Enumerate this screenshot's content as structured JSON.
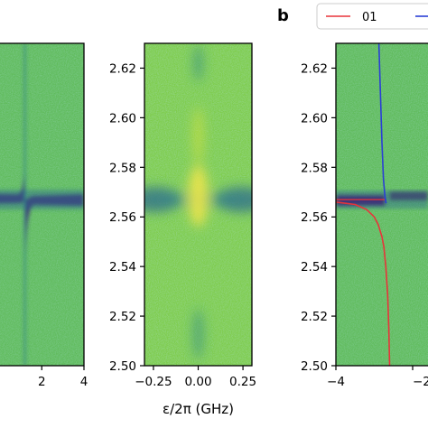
{
  "panel_letter": "b",
  "chart_data": [
    {
      "type": "heatmap",
      "panel": "left-cropped",
      "x_tick_labels": [
        "2",
        "4"
      ],
      "x_ticks": [
        2,
        4
      ],
      "xlim": [
        -4,
        4
      ],
      "ylim": [
        2.5,
        2.63
      ],
      "features": {
        "resonance_center_ghz": 2.567,
        "avoided_crossing_x": 1.2,
        "vertical_line_x": 1.2
      },
      "colormap": "viridis"
    },
    {
      "type": "heatmap",
      "panel": "middle",
      "xlabel": "ε/2π (GHz)",
      "x_ticks": [
        -0.25,
        0.0,
        0.25
      ],
      "x_tick_labels": [
        "−0.25",
        "0.00",
        "0.25"
      ],
      "xlim": [
        -0.3,
        0.3
      ],
      "y_ticks": [
        2.5,
        2.52,
        2.54,
        2.56,
        2.58,
        2.6,
        2.62
      ],
      "y_tick_labels": [
        "2.50",
        "2.52",
        "2.54",
        "2.56",
        "2.58",
        "2.60",
        "2.62"
      ],
      "ylim": [
        2.5,
        2.63
      ],
      "features": {
        "resonance_center_ghz": 2.567
      },
      "colormap": "viridis"
    },
    {
      "type": "line",
      "panel": "right",
      "overlay": "heatmap",
      "x_ticks": [
        -4,
        -2
      ],
      "x_tick_labels": [
        "−4",
        "−2"
      ],
      "xlim": [
        -4,
        -1.6
      ],
      "y_ticks": [
        2.5,
        2.52,
        2.54,
        2.56,
        2.58,
        2.6,
        2.62
      ],
      "y_tick_labels": [
        "2.50",
        "2.52",
        "2.54",
        "2.56",
        "2.58",
        "2.60",
        "2.62"
      ],
      "ylim": [
        2.5,
        2.63
      ],
      "legend": {
        "placement": "top",
        "entries": [
          "01"
        ]
      },
      "series": [
        {
          "name": "01",
          "color": "#e8343a",
          "x": [
            -4.0,
            -3.5,
            -3.2,
            -3.0,
            -2.9,
            -2.8,
            -2.75,
            -2.7,
            -2.65,
            -2.62,
            -2.6
          ],
          "y": [
            2.566,
            2.565,
            2.563,
            2.56,
            2.557,
            2.552,
            2.548,
            2.54,
            2.528,
            2.515,
            2.5
          ]
        },
        {
          "color": "#2a3fd6",
          "x": [
            -2.88,
            -2.84,
            -2.8,
            -2.76,
            -2.72,
            -2.7,
            -2.69
          ],
          "y": [
            2.63,
            2.61,
            2.59,
            2.575,
            2.568,
            2.566,
            2.5655
          ]
        }
      ],
      "horizontal_line": {
        "color": "#e8343a",
        "y": 2.567,
        "x_from": -4.0,
        "x_to": -2.7
      },
      "colormap": "viridis"
    }
  ]
}
